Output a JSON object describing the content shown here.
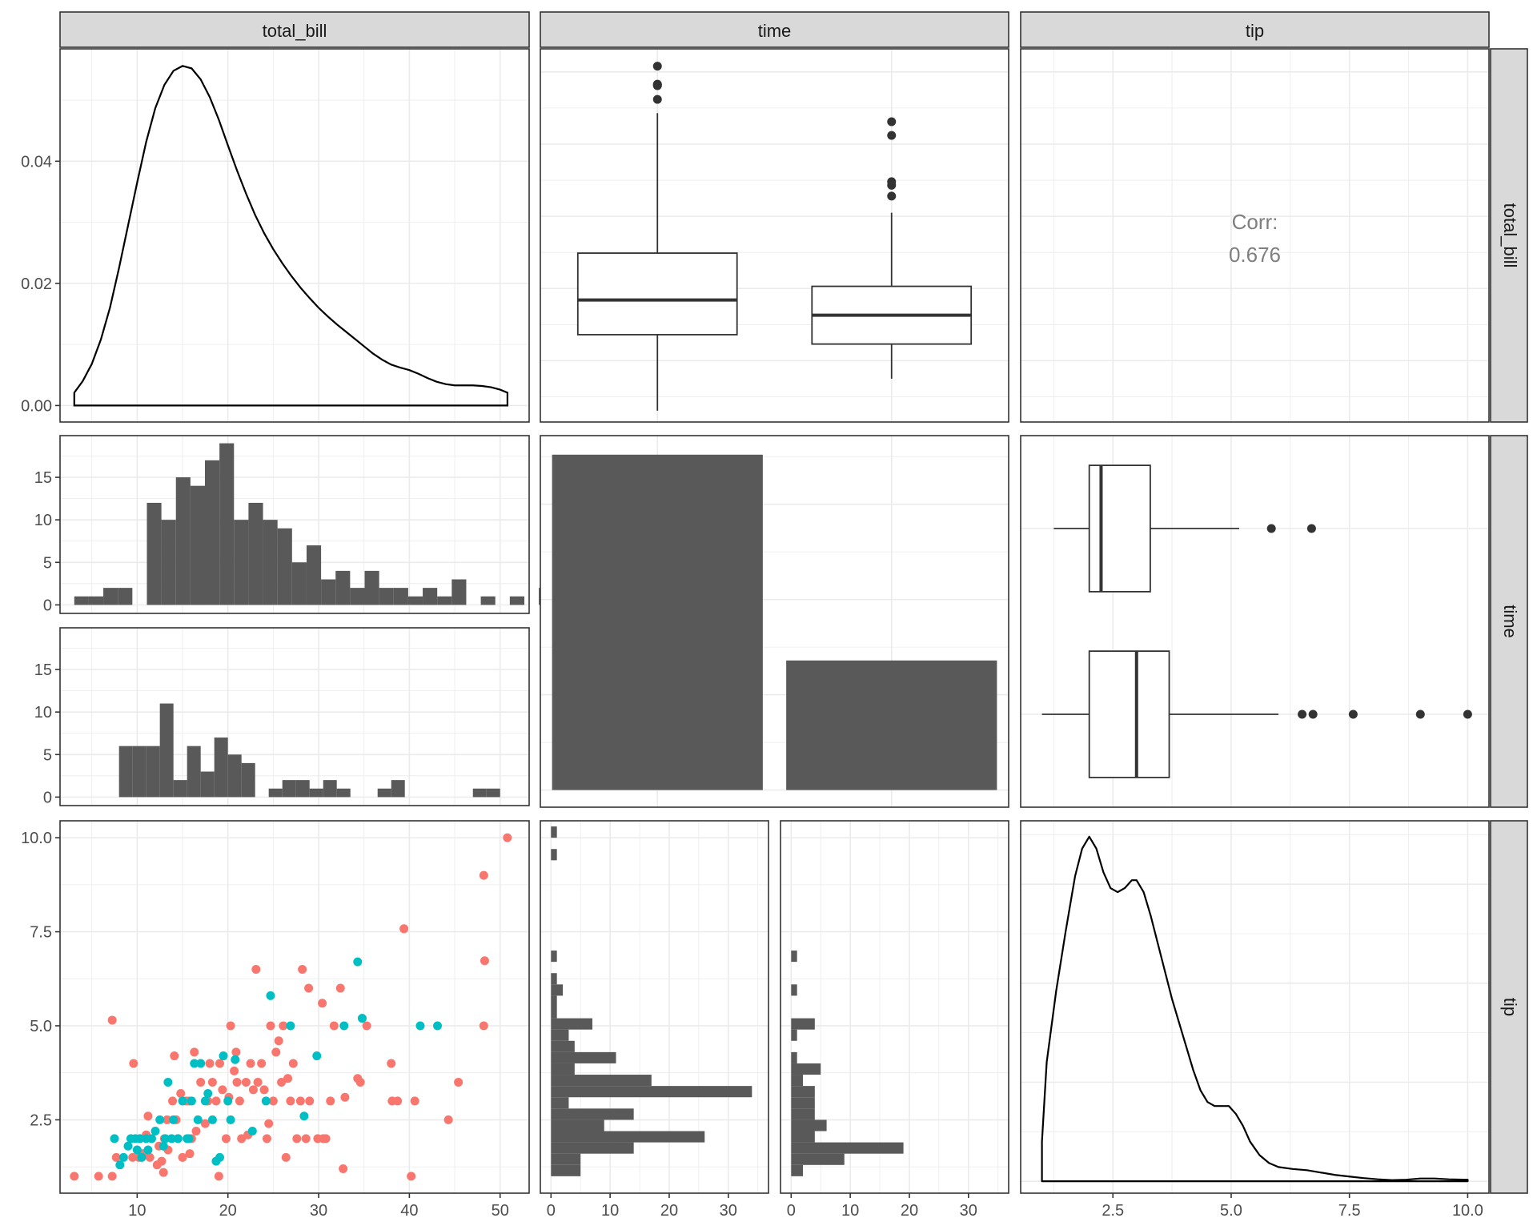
{
  "chart_data": {
    "type": "scatter",
    "variables": [
      "total_bill",
      "time",
      "tip"
    ],
    "strip_labels": {
      "columns": [
        "total_bill",
        "time",
        "tip"
      ],
      "rows": [
        "total_bill",
        "time",
        "tip"
      ]
    },
    "colors": {
      "panel_border": "#333333",
      "strip_fill": "#d9d9d9",
      "grid": "#ebebeb",
      "bar_fill": "#595959",
      "series_a": "#f8766d",
      "series_b": "#00bfc4",
      "corr_text": "#7f7f7f"
    },
    "axes": {
      "total_bill_x": {
        "ticks": [
          "10",
          "20",
          "30",
          "40",
          "50"
        ],
        "values": [
          10,
          20,
          30,
          40,
          50
        ],
        "range": [
          1.5,
          53.2
        ]
      },
      "tip_x": {
        "ticks": [
          "2.5",
          "5.0",
          "7.5",
          "10.0"
        ],
        "values": [
          2.5,
          5.0,
          7.5,
          10.0
        ],
        "range": [
          0.55,
          10.45
        ]
      },
      "count_x_left": {
        "ticks": [
          "0",
          "10",
          "20",
          "30"
        ],
        "values": [
          0,
          10,
          20,
          30
        ],
        "range": [
          -1.8,
          36.8
        ]
      },
      "count_x_right": {
        "ticks": [
          "0",
          "10",
          "20",
          "30"
        ],
        "values": [
          0,
          10,
          20,
          30
        ],
        "range": [
          -1.8,
          36.8
        ]
      },
      "density_y": {
        "ticks": [
          "0.00",
          "0.02",
          "0.04"
        ],
        "values": [
          0,
          0.02,
          0.04
        ],
        "range": [
          -0.0027,
          0.0584
        ]
      },
      "hist_y": {
        "ticks": [
          "0",
          "5",
          "10",
          "15"
        ],
        "values": [
          0,
          5,
          10,
          15
        ],
        "range": [
          -1.0,
          19.9
        ]
      },
      "tip_y": {
        "ticks": [
          "2.5",
          "5.0",
          "7.5",
          "10.0"
        ],
        "values": [
          2.5,
          5.0,
          7.5,
          10.0
        ],
        "range": [
          0.55,
          10.45
        ]
      },
      "bill_y_hidden_range": [
        1.5,
        53.2
      ]
    },
    "corr": {
      "label": "Corr:",
      "value": "0.676"
    },
    "density_total_bill": [
      [
        3.07,
        0.0021
      ],
      [
        4,
        0.004
      ],
      [
        5,
        0.0068
      ],
      [
        6,
        0.0108
      ],
      [
        7,
        0.016
      ],
      [
        8,
        0.0225
      ],
      [
        9,
        0.0295
      ],
      [
        10,
        0.0365
      ],
      [
        11,
        0.0432
      ],
      [
        12,
        0.0487
      ],
      [
        13,
        0.0525
      ],
      [
        14,
        0.0548
      ],
      [
        15,
        0.0556
      ],
      [
        16,
        0.0552
      ],
      [
        17,
        0.0534
      ],
      [
        18,
        0.0505
      ],
      [
        19,
        0.0468
      ],
      [
        20,
        0.0426
      ],
      [
        21,
        0.0385
      ],
      [
        22,
        0.0347
      ],
      [
        23,
        0.0312
      ],
      [
        24,
        0.0282
      ],
      [
        25,
        0.0256
      ],
      [
        26,
        0.0233
      ],
      [
        27,
        0.0212
      ],
      [
        28,
        0.0193
      ],
      [
        29,
        0.0176
      ],
      [
        30,
        0.016
      ],
      [
        31,
        0.0146
      ],
      [
        32,
        0.0133
      ],
      [
        33,
        0.0121
      ],
      [
        34,
        0.0109
      ],
      [
        35,
        0.0097
      ],
      [
        36,
        0.0085
      ],
      [
        37,
        0.0075
      ],
      [
        38,
        0.0067
      ],
      [
        39,
        0.0062
      ],
      [
        40,
        0.0058
      ],
      [
        41,
        0.0052
      ],
      [
        42,
        0.0045
      ],
      [
        43,
        0.0039
      ],
      [
        44,
        0.0035
      ],
      [
        45,
        0.0033
      ],
      [
        46,
        0.0033
      ],
      [
        47,
        0.0033
      ],
      [
        48,
        0.0032
      ],
      [
        49,
        0.003
      ],
      [
        50,
        0.0026
      ],
      [
        50.81,
        0.0021
      ]
    ],
    "density_tip": [
      [
        1.0,
        0.1
      ],
      [
        1.1,
        0.3
      ],
      [
        1.3,
        0.48
      ],
      [
        1.5,
        0.63
      ],
      [
        1.7,
        0.77
      ],
      [
        1.85,
        0.84
      ],
      [
        2.0,
        0.87
      ],
      [
        2.15,
        0.84
      ],
      [
        2.3,
        0.78
      ],
      [
        2.45,
        0.74
      ],
      [
        2.6,
        0.73
      ],
      [
        2.75,
        0.74
      ],
      [
        2.9,
        0.76
      ],
      [
        3.0,
        0.76
      ],
      [
        3.15,
        0.73
      ],
      [
        3.3,
        0.67
      ],
      [
        3.45,
        0.6
      ],
      [
        3.6,
        0.53
      ],
      [
        3.75,
        0.46
      ],
      [
        3.9,
        0.4
      ],
      [
        4.05,
        0.34
      ],
      [
        4.2,
        0.28
      ],
      [
        4.35,
        0.23
      ],
      [
        4.5,
        0.2
      ],
      [
        4.65,
        0.19
      ],
      [
        4.8,
        0.19
      ],
      [
        4.95,
        0.19
      ],
      [
        5.1,
        0.17
      ],
      [
        5.25,
        0.14
      ],
      [
        5.4,
        0.1
      ],
      [
        5.6,
        0.066
      ],
      [
        5.8,
        0.046
      ],
      [
        6.0,
        0.036
      ],
      [
        6.3,
        0.031
      ],
      [
        6.6,
        0.028
      ],
      [
        6.9,
        0.022
      ],
      [
        7.2,
        0.016
      ],
      [
        7.5,
        0.012
      ],
      [
        7.8,
        0.008
      ],
      [
        8.1,
        0.005
      ],
      [
        8.4,
        0.003
      ],
      [
        8.7,
        0.004
      ],
      [
        9.0,
        0.007
      ],
      [
        9.3,
        0.007
      ],
      [
        9.6,
        0.005
      ],
      [
        10.0,
        0.004
      ]
    ],
    "density_tip_ylim": [
      -0.03,
      0.91
    ],
    "hist_top": {
      "bin_start": 3.07,
      "bin_width": 1.6,
      "counts": [
        1,
        1,
        2,
        2,
        0,
        12,
        10,
        15,
        14,
        17,
        19,
        10,
        12,
        10,
        9,
        5,
        7,
        3,
        4,
        2,
        4,
        2,
        2,
        1,
        2,
        1,
        3,
        0,
        1,
        0,
        1,
        0,
        2,
        3,
        0,
        1
      ]
    },
    "hist_bottom": {
      "bin_start": 8.0,
      "bin_width": 1.5,
      "counts": [
        6,
        6,
        6,
        11,
        2,
        6,
        3,
        7,
        5,
        4,
        0,
        1,
        2,
        2,
        1,
        2,
        1,
        0,
        0,
        1,
        2,
        0,
        0,
        0,
        0,
        0,
        1,
        1
      ]
    },
    "bars": {
      "counts": [
        176,
        68
      ],
      "ylim": [
        -9,
        186
      ]
    },
    "hhist_left": {
      "bin_start": 1.0,
      "bin_width": 0.3,
      "counts": [
        5,
        5,
        14,
        26,
        9,
        14,
        3,
        34,
        17,
        4,
        11,
        4,
        3,
        7,
        1,
        1,
        2,
        1,
        0,
        1,
        0,
        0,
        0,
        0,
        0,
        0,
        0,
        0,
        1,
        0,
        1
      ]
    },
    "hhist_right": {
      "bin_start": 1.0,
      "bin_width": 0.3,
      "counts": [
        2,
        9,
        19,
        4,
        6,
        4,
        4,
        4,
        2,
        5,
        1,
        0,
        1,
        4,
        0,
        0,
        1,
        0,
        0,
        1,
        0,
        0,
        0,
        0,
        0,
        0,
        0,
        0,
        0,
        0,
        0
      ]
    },
    "box_bill_by_time": [
      {
        "min": 3.07,
        "q1": 13.6,
        "median": 18.4,
        "q3": 24.9,
        "max": 44.3,
        "outliers": [
          48.3,
          48.2,
          48.1,
          50.8,
          46.2
        ]
      },
      {
        "min": 7.5,
        "q1": 12.3,
        "median": 16.3,
        "q3": 20.3,
        "max": 30.5,
        "outliers": [
          43.1,
          41.2,
          34.8,
          34.3,
          32.8
        ]
      }
    ],
    "box_tip_by_time": [
      {
        "min": 1.25,
        "q1": 2.0,
        "median": 2.25,
        "q3": 3.29,
        "max": 5.17,
        "outliers": [
          5.85,
          6.7
        ]
      },
      {
        "min": 1.0,
        "q1": 2.0,
        "median": 3.0,
        "q3": 3.69,
        "max": 6.0,
        "outliers": [
          6.5,
          6.73,
          7.58,
          9.0,
          10.0
        ]
      }
    ],
    "scatter_series": [
      {
        "color": "#f8766d",
        "points": [
          [
            3.07,
            1.0
          ],
          [
            5.75,
            1.0
          ],
          [
            7.25,
            1.0
          ],
          [
            7.25,
            5.15
          ],
          [
            7.7,
            1.5
          ],
          [
            9.5,
            1.5
          ],
          [
            9.6,
            4.0
          ],
          [
            10.2,
            1.5
          ],
          [
            10.3,
            2.0
          ],
          [
            10.6,
            1.6
          ],
          [
            11.0,
            2.1
          ],
          [
            11.4,
            1.5
          ],
          [
            11.2,
            2.6
          ],
          [
            12.4,
            1.8
          ],
          [
            12.7,
            1.4
          ],
          [
            12.9,
            1.1
          ],
          [
            13.0,
            2.0
          ],
          [
            13.3,
            2.5
          ],
          [
            13.4,
            1.7
          ],
          [
            13.9,
            3.0
          ],
          [
            14.1,
            4.2
          ],
          [
            14.3,
            2.5
          ],
          [
            14.5,
            2.0
          ],
          [
            14.8,
            3.2
          ],
          [
            15.0,
            1.5
          ],
          [
            15.4,
            3.0
          ],
          [
            15.7,
            3.0
          ],
          [
            16.0,
            2.0
          ],
          [
            16.3,
            4.3
          ],
          [
            16.5,
            2.2
          ],
          [
            17.0,
            3.5
          ],
          [
            17.5,
            2.4
          ],
          [
            17.8,
            3.0
          ],
          [
            18.0,
            4.0
          ],
          [
            18.3,
            3.5
          ],
          [
            18.7,
            3.0
          ],
          [
            19.0,
            1.0
          ],
          [
            19.4,
            3.3
          ],
          [
            19.8,
            2.0
          ],
          [
            20.1,
            3.1
          ],
          [
            20.3,
            5.0
          ],
          [
            20.7,
            3.8
          ],
          [
            21.0,
            3.5
          ],
          [
            21.3,
            3.0
          ],
          [
            21.5,
            2.0
          ],
          [
            22.0,
            3.5
          ],
          [
            22.5,
            4.0
          ],
          [
            22.8,
            3.3
          ],
          [
            23.1,
            6.5
          ],
          [
            23.3,
            3.5
          ],
          [
            23.7,
            4.0
          ],
          [
            24.0,
            3.3
          ],
          [
            24.3,
            2.0
          ],
          [
            24.7,
            5.0
          ],
          [
            25.0,
            3.0
          ],
          [
            25.3,
            4.3
          ],
          [
            25.6,
            4.6
          ],
          [
            25.9,
            3.5
          ],
          [
            26.1,
            5.0
          ],
          [
            26.4,
            1.5
          ],
          [
            26.9,
            3.0
          ],
          [
            27.2,
            4.0
          ],
          [
            27.6,
            2.0
          ],
          [
            28.0,
            3.0
          ],
          [
            28.2,
            6.5
          ],
          [
            28.6,
            2.0
          ],
          [
            28.9,
            6.0
          ],
          [
            29.0,
            3.0
          ],
          [
            29.9,
            2.0
          ],
          [
            30.4,
            5.6
          ],
          [
            30.5,
            2.0
          ],
          [
            30.8,
            2.0
          ],
          [
            31.3,
            3.0
          ],
          [
            31.7,
            5.0
          ],
          [
            32.4,
            6.0
          ],
          [
            32.7,
            1.2
          ],
          [
            32.9,
            3.1
          ],
          [
            34.3,
            3.6
          ],
          [
            34.6,
            3.5
          ],
          [
            34.8,
            5.2
          ],
          [
            35.3,
            5.0
          ],
          [
            38.0,
            4.0
          ],
          [
            38.1,
            3.0
          ],
          [
            38.7,
            3.0
          ],
          [
            39.4,
            7.58
          ],
          [
            40.6,
            3.0
          ],
          [
            40.2,
            1.0
          ],
          [
            44.3,
            2.5
          ],
          [
            45.4,
            3.5
          ],
          [
            48.2,
            5.0
          ],
          [
            48.3,
            6.73
          ],
          [
            48.2,
            9.0
          ],
          [
            50.8,
            10.0
          ],
          [
            20.9,
            4.3
          ],
          [
            22.2,
            2.1
          ],
          [
            15.8,
            1.6
          ],
          [
            12.2,
            1.3
          ],
          [
            19.1,
            4.0
          ],
          [
            26.6,
            3.6
          ],
          [
            24.5,
            2.4
          ]
        ]
      },
      {
        "color": "#00bfc4",
        "points": [
          [
            7.5,
            2.0
          ],
          [
            8.1,
            1.3
          ],
          [
            8.5,
            1.5
          ],
          [
            9.0,
            1.8
          ],
          [
            9.3,
            2.0
          ],
          [
            9.8,
            2.0
          ],
          [
            10.0,
            1.7
          ],
          [
            10.3,
            2.0
          ],
          [
            10.5,
            1.5
          ],
          [
            11.0,
            2.0
          ],
          [
            11.2,
            1.7
          ],
          [
            11.6,
            2.0
          ],
          [
            12.0,
            2.2
          ],
          [
            12.5,
            2.5
          ],
          [
            12.9,
            1.8
          ],
          [
            13.1,
            2.0
          ],
          [
            13.4,
            3.5
          ],
          [
            13.8,
            2.0
          ],
          [
            14.0,
            2.5
          ],
          [
            14.5,
            2.0
          ],
          [
            15.0,
            3.0
          ],
          [
            15.5,
            2.0
          ],
          [
            15.7,
            2.0
          ],
          [
            16.0,
            3.0
          ],
          [
            16.3,
            4.0
          ],
          [
            16.7,
            2.5
          ],
          [
            17.0,
            4.0
          ],
          [
            17.5,
            3.0
          ],
          [
            17.8,
            3.2
          ],
          [
            18.3,
            2.5
          ],
          [
            18.7,
            1.4
          ],
          [
            19.1,
            1.5
          ],
          [
            19.5,
            4.2
          ],
          [
            20.0,
            3.0
          ],
          [
            20.3,
            2.5
          ],
          [
            20.8,
            4.1
          ],
          [
            22.7,
            2.2
          ],
          [
            24.2,
            3.0
          ],
          [
            24.7,
            5.8
          ],
          [
            26.9,
            5.0
          ],
          [
            28.4,
            2.6
          ],
          [
            29.8,
            4.2
          ],
          [
            32.8,
            5.0
          ],
          [
            34.3,
            6.7
          ],
          [
            34.8,
            5.2
          ],
          [
            41.2,
            5.0
          ],
          [
            43.1,
            5.0
          ]
        ]
      }
    ]
  }
}
